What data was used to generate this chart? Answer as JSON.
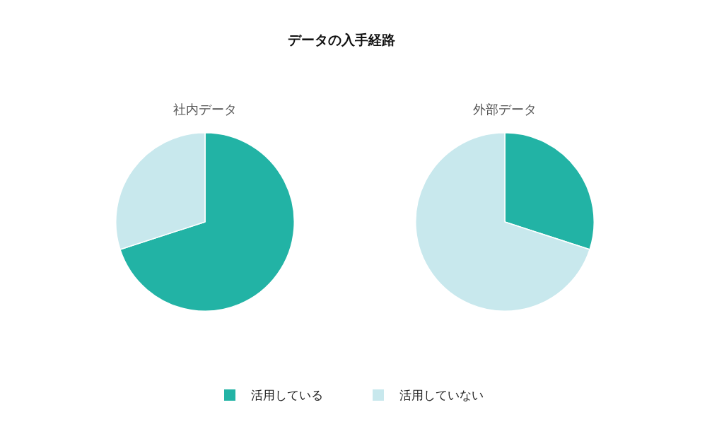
{
  "chart_data": [
    {
      "type": "pie",
      "title": "データの入手経路",
      "subtitle": "社内データ",
      "categories": [
        "活用している",
        "活用していない"
      ],
      "values": [
        70,
        30
      ],
      "colors": [
        "#22b3a5",
        "#c8e8ed"
      ],
      "legend": "bottom"
    },
    {
      "type": "pie",
      "subtitle": "外部データ",
      "categories": [
        null,
        null
      ],
      "values": [
        30,
        70
      ],
      "colors": [
        "#22b3a5",
        "#c8e8ed"
      ]
    }
  ]
}
